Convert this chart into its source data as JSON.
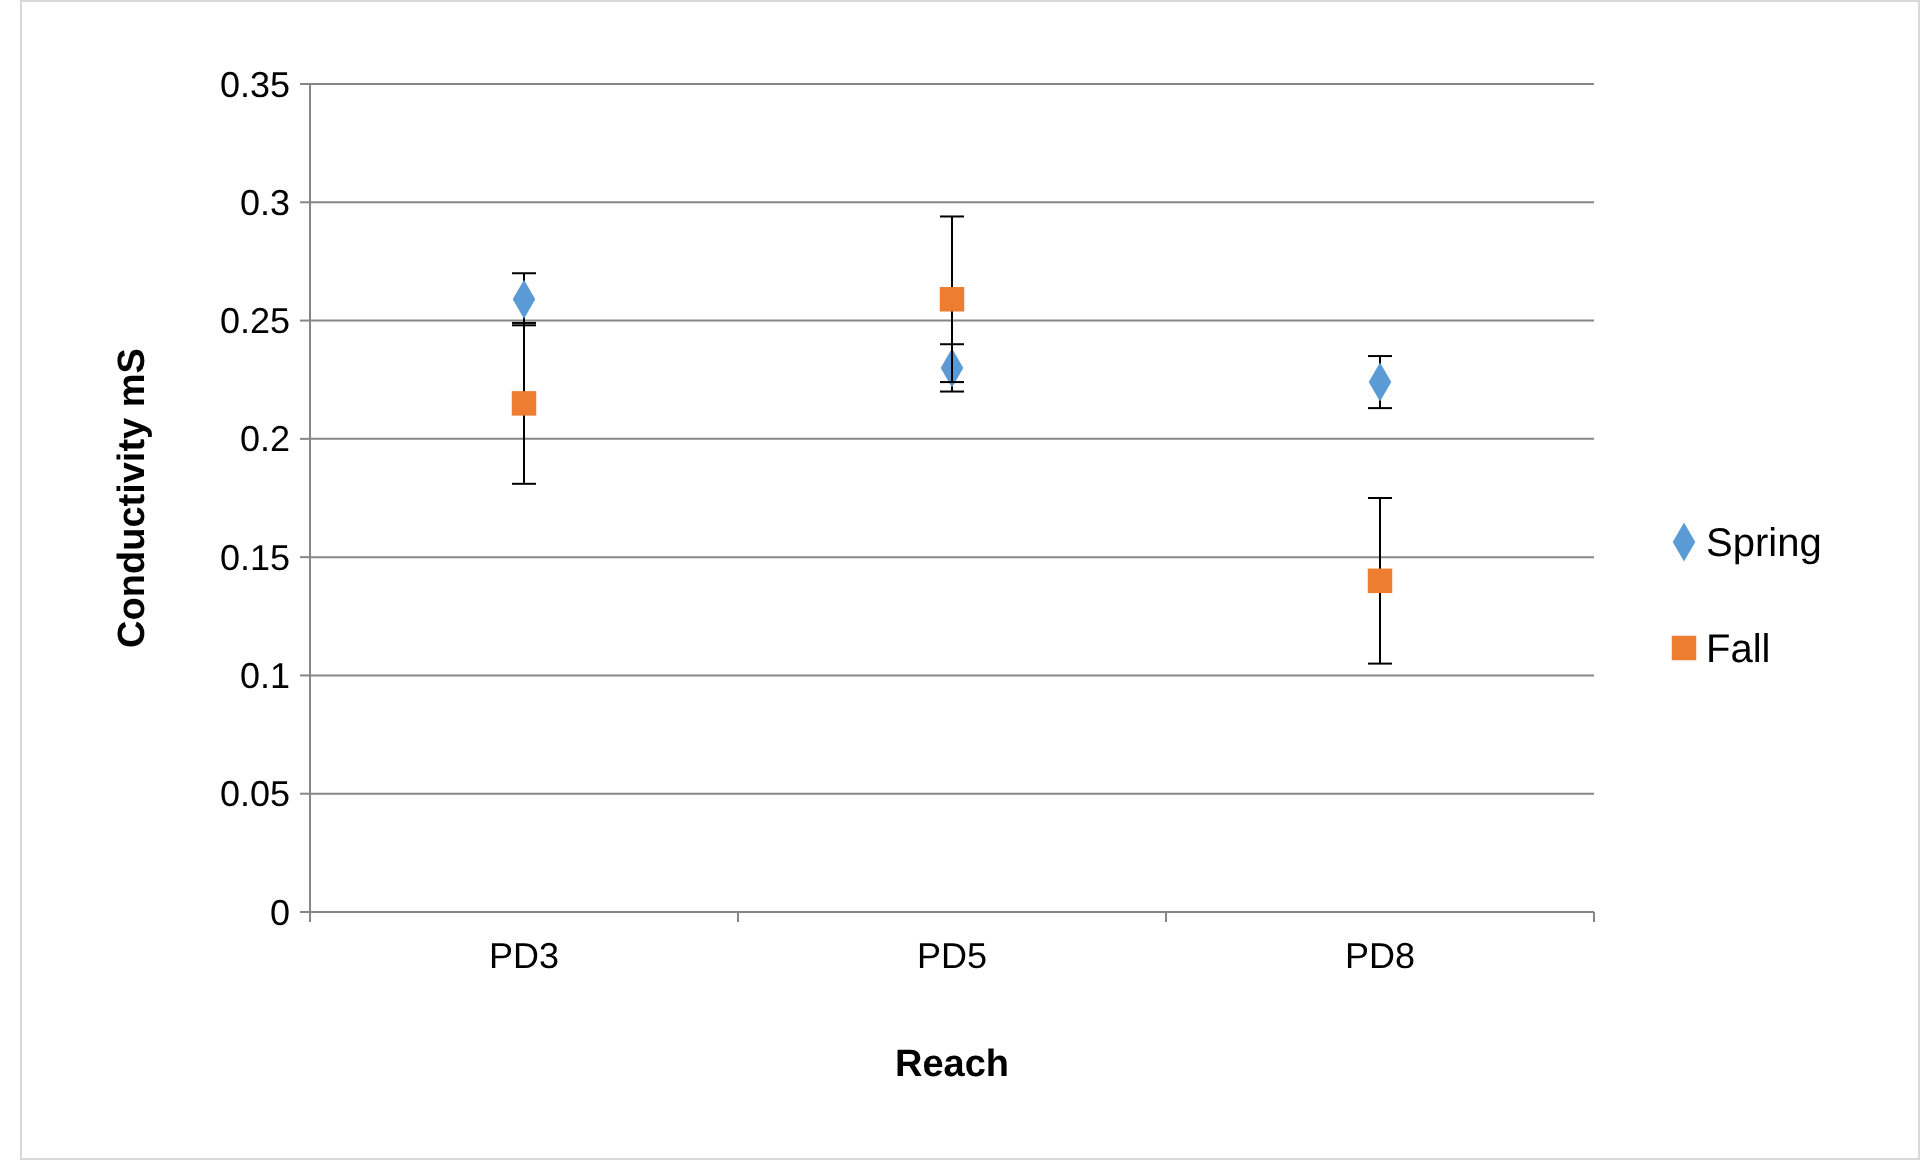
{
  "chart_data": {
    "type": "scatter",
    "xlabel": "Reach",
    "ylabel": "Conductivity mS",
    "categories": [
      "PD3",
      "PD5",
      "PD8"
    ],
    "ylim": [
      0,
      0.35
    ],
    "yticks": [
      0,
      0.05,
      0.1,
      0.15,
      0.2,
      0.25,
      0.3,
      0.35
    ],
    "grid": "y",
    "legend": "right",
    "series": [
      {
        "name": "Spring",
        "color": "#5b9bd5",
        "marker": "diamond",
        "values": [
          0.259,
          0.23,
          0.224
        ],
        "errors": [
          0.011,
          0.01,
          0.011
        ]
      },
      {
        "name": "Fall",
        "color": "#ed7d31",
        "marker": "square",
        "values": [
          0.215,
          0.259,
          0.14
        ],
        "errors": [
          0.034,
          0.035,
          0.035
        ]
      }
    ]
  }
}
